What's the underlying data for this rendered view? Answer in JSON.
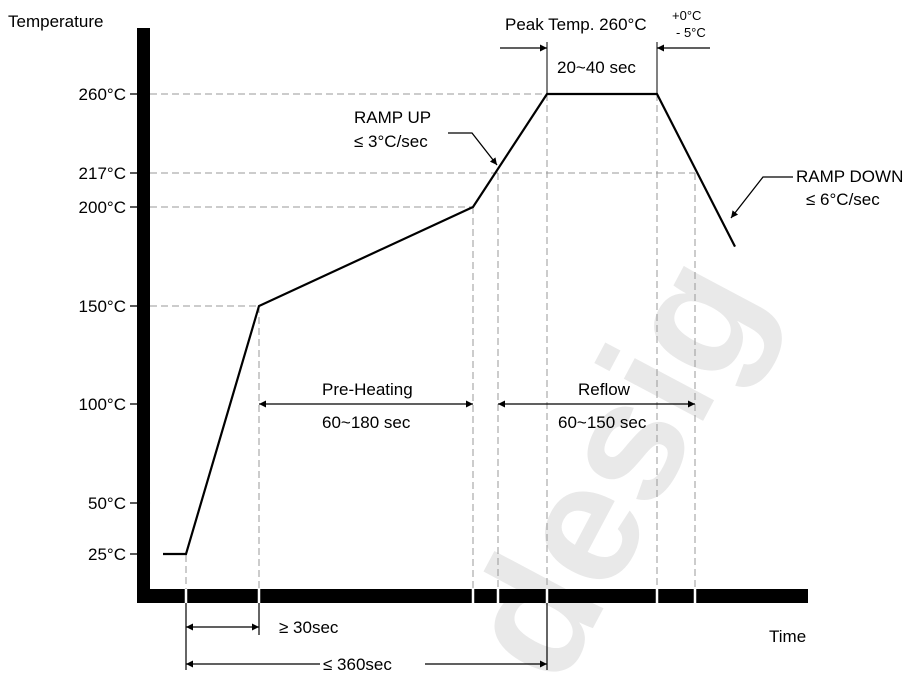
{
  "chart_data": {
    "type": "line",
    "title": "",
    "ylabel": "Temperature",
    "xlabel": "Time",
    "y_ticks": [
      {
        "value": 25,
        "label": "25°C"
      },
      {
        "value": 50,
        "label": "50°C"
      },
      {
        "value": 100,
        "label": "100°C"
      },
      {
        "value": 150,
        "label": "150°C"
      },
      {
        "value": 200,
        "label": "200°C"
      },
      {
        "value": 217,
        "label": "217°C"
      },
      {
        "value": 260,
        "label": "260°C"
      }
    ],
    "series": [
      {
        "points": [
          {
            "t": -15,
            "temp": 25
          },
          {
            "t": 0,
            "temp": 25
          },
          {
            "t": 40,
            "temp": 150
          },
          {
            "t": 155,
            "temp": 200
          },
          {
            "t": 175,
            "temp": 260
          },
          {
            "t": 235,
            "temp": 260
          },
          {
            "t": 295,
            "temp": 180
          }
        ]
      }
    ],
    "annotations": {
      "peak_temp": {
        "text": "Peak Temp. 260°C",
        "tol_plus": "+0°C",
        "tol_minus": "- 5°C"
      },
      "peak_time": "20~40 sec",
      "ramp_up": [
        "RAMP UP",
        "≤ 3°C/sec"
      ],
      "ramp_down": [
        "RAMP DOWN",
        "≤ 6°C/sec"
      ],
      "preheat": [
        "Pre-Heating",
        "60~180 sec"
      ],
      "reflow": [
        "Reflow",
        "60~150 sec"
      ],
      "min_time": "≥ 30sec",
      "max_time": "≤ 360sec"
    }
  },
  "watermark": "desig"
}
